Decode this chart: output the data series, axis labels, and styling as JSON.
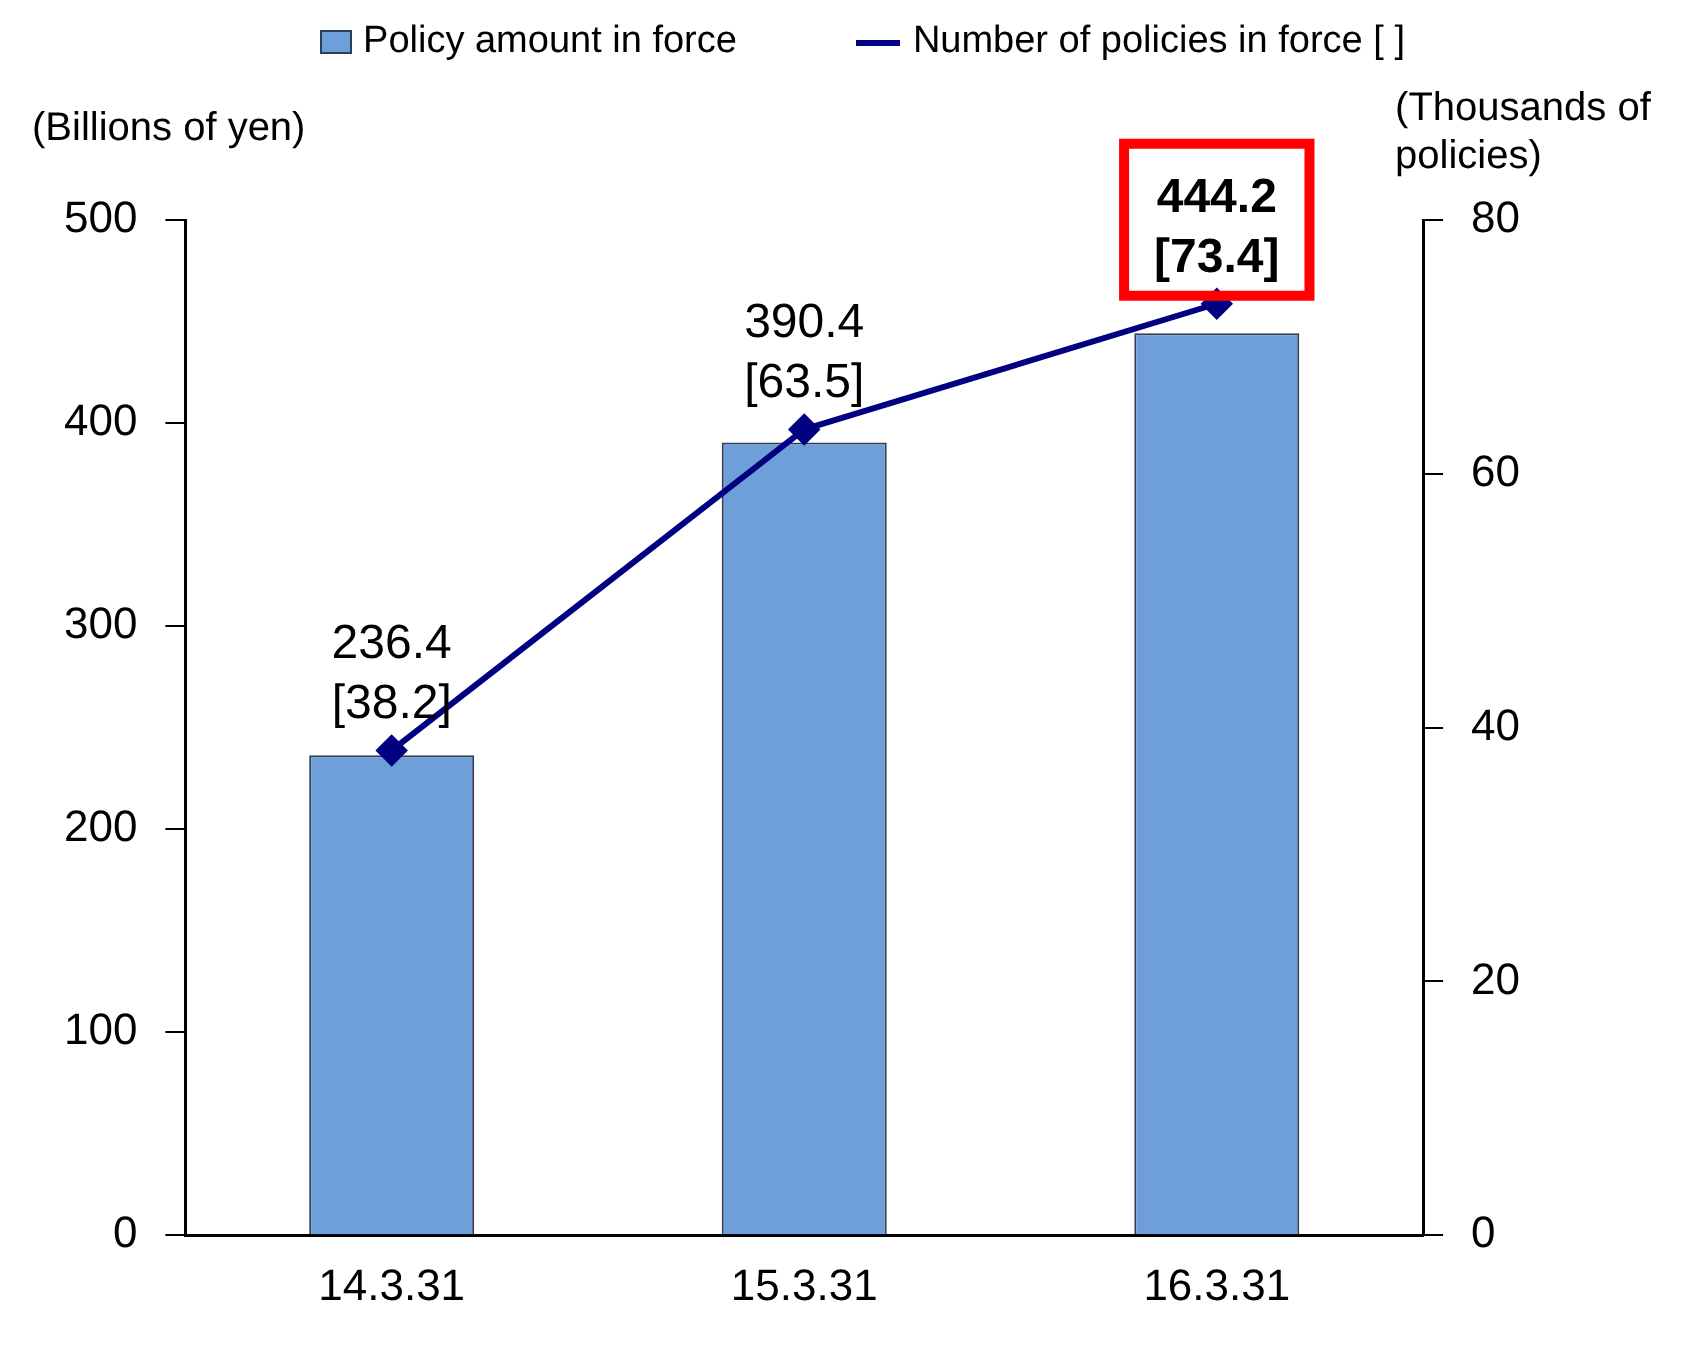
{
  "chart_data": {
    "type": "bar",
    "ylabel": "(Billions of yen)",
    "y2label": "(Thousands of policies)",
    "categories": [
      "14.3.31",
      "15.3.31",
      "16.3.31"
    ],
    "series": [
      {
        "name": "Policy amount in force",
        "color": "#6f9fd8",
        "values": [
          236.4,
          390.4,
          444.2
        ],
        "value_labels": [
          "236.4",
          "390.4",
          "444.2"
        ]
      },
      {
        "name": "Number of policies in force [ ]",
        "type": "line",
        "axis": "y2",
        "color": "#000080",
        "marker": "diamond",
        "values": [
          38.2,
          63.5,
          73.4
        ],
        "value_labels": [
          "[38.2]",
          "[63.5]",
          "[73.4]"
        ]
      }
    ],
    "ylim": [
      0,
      500
    ],
    "yticks": [
      0,
      100,
      200,
      300,
      400,
      500
    ],
    "y2lim": [
      0,
      80
    ],
    "y2ticks": [
      0,
      20,
      40,
      60,
      80
    ],
    "grid": false,
    "legend": "top"
  }
}
